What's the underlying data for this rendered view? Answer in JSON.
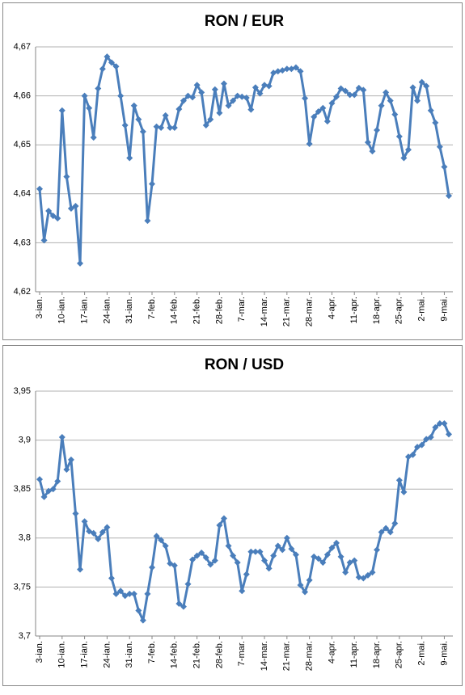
{
  "chart_data": [
    {
      "type": "line",
      "title": "RON / EUR",
      "color": "#4a7ebb",
      "grid": true,
      "categories": [
        "3-ian.",
        null,
        null,
        null,
        null,
        "10-ian.",
        null,
        null,
        null,
        null,
        "17-ian.",
        null,
        null,
        null,
        null,
        "24-ian.",
        null,
        null,
        null,
        null,
        "31-ian.",
        null,
        null,
        null,
        null,
        "7-feb.",
        null,
        null,
        null,
        null,
        "14-feb.",
        null,
        null,
        null,
        null,
        "21-feb.",
        null,
        null,
        null,
        null,
        "28-feb.",
        null,
        null,
        null,
        null,
        "7-mar.",
        null,
        null,
        null,
        null,
        "14-mar.",
        null,
        null,
        null,
        null,
        "21-mar.",
        null,
        null,
        null,
        null,
        "28-mar.",
        null,
        null,
        null,
        null,
        "4-apr.",
        null,
        null,
        null,
        null,
        "11-apr.",
        null,
        null,
        null,
        null,
        "18-apr.",
        null,
        null,
        null,
        null,
        "25-apr.",
        null,
        null,
        null,
        null,
        "2-mai.",
        null,
        null,
        null,
        null,
        "9-mai.",
        null
      ],
      "values": [
        4.641,
        4.6305,
        4.6365,
        4.6355,
        4.635,
        4.657,
        4.6435,
        4.637,
        4.6375,
        4.6258,
        4.66,
        4.6575,
        4.6515,
        4.6615,
        4.6655,
        4.668,
        4.6668,
        4.666,
        4.66,
        4.654,
        4.6473,
        4.658,
        4.6552,
        4.6527,
        4.6345,
        4.642,
        4.6537,
        4.6535,
        4.656,
        4.6535,
        4.6535,
        4.6573,
        4.659,
        4.66,
        4.6597,
        4.6622,
        4.6607,
        4.654,
        4.6552,
        4.6613,
        4.6565,
        4.6625,
        4.658,
        4.659,
        4.66,
        4.6598,
        4.6596,
        4.6572,
        4.6617,
        4.6605,
        4.6622,
        4.662,
        4.6647,
        4.665,
        4.6652,
        4.6655,
        4.6655,
        4.6658,
        4.665,
        4.6595,
        4.6502,
        4.6557,
        4.6568,
        4.6575,
        4.6548,
        4.6585,
        4.6598,
        4.6615,
        4.661,
        4.6602,
        4.6602,
        4.6616,
        4.6612,
        4.6505,
        4.6487,
        4.653,
        4.658,
        4.6607,
        4.659,
        4.6562,
        4.6517,
        4.6473,
        4.649,
        4.6617,
        4.659,
        4.6628,
        4.662,
        4.657,
        4.6545,
        4.6496,
        4.6455,
        4.6396
      ],
      "ylim": [
        4.62,
        4.67
      ],
      "yticks": [
        {
          "value": 4.62,
          "label": "4,62"
        },
        {
          "value": 4.63,
          "label": "4,63"
        },
        {
          "value": 4.64,
          "label": "4,64"
        },
        {
          "value": 4.65,
          "label": "4,65"
        },
        {
          "value": 4.66,
          "label": "4,66"
        },
        {
          "value": 4.67,
          "label": "4,67"
        }
      ]
    },
    {
      "type": "line",
      "title": "RON / USD",
      "color": "#4a7ebb",
      "grid": true,
      "categories": [
        "3-ian.",
        null,
        null,
        null,
        null,
        "10-ian.",
        null,
        null,
        null,
        null,
        "17-ian.",
        null,
        null,
        null,
        null,
        "24-ian.",
        null,
        null,
        null,
        null,
        "31-ian.",
        null,
        null,
        null,
        null,
        "7-feb.",
        null,
        null,
        null,
        null,
        "14-feb.",
        null,
        null,
        null,
        null,
        "21-feb.",
        null,
        null,
        null,
        null,
        "28-feb.",
        null,
        null,
        null,
        null,
        "7-mar.",
        null,
        null,
        null,
        null,
        "14-mar.",
        null,
        null,
        null,
        null,
        "21-mar.",
        null,
        null,
        null,
        null,
        "28-mar.",
        null,
        null,
        null,
        null,
        "4-apr.",
        null,
        null,
        null,
        null,
        "11-apr.",
        null,
        null,
        null,
        null,
        "18-apr.",
        null,
        null,
        null,
        null,
        "25-apr.",
        null,
        null,
        null,
        null,
        "2-mai.",
        null,
        null,
        null,
        null,
        "9-mai.",
        null
      ],
      "values": [
        3.86,
        3.842,
        3.848,
        3.85,
        3.858,
        3.903,
        3.87,
        3.88,
        3.825,
        3.768,
        3.817,
        3.807,
        3.805,
        3.799,
        3.806,
        3.811,
        3.759,
        3.743,
        3.746,
        3.741,
        3.743,
        3.743,
        3.726,
        3.716,
        3.743,
        3.77,
        3.802,
        3.798,
        3.792,
        3.774,
        3.772,
        3.733,
        3.73,
        3.753,
        3.778,
        3.782,
        3.785,
        3.78,
        3.773,
        3.777,
        3.813,
        3.82,
        3.792,
        3.782,
        3.775,
        3.746,
        3.763,
        3.786,
        3.786,
        3.786,
        3.777,
        3.769,
        3.782,
        3.792,
        3.788,
        3.8,
        3.789,
        3.783,
        3.752,
        3.745,
        3.757,
        3.781,
        3.779,
        3.775,
        3.783,
        3.79,
        3.795,
        3.781,
        3.765,
        3.775,
        3.777,
        3.76,
        3.759,
        3.762,
        3.765,
        3.788,
        3.806,
        3.81,
        3.806,
        3.815,
        3.859,
        3.847,
        3.883,
        3.885,
        3.893,
        3.895,
        3.901,
        3.903,
        3.913,
        3.917,
        3.917,
        3.906
      ],
      "ylim": [
        3.7,
        3.95
      ],
      "yticks": [
        {
          "value": 3.7,
          "label": "3,7"
        },
        {
          "value": 3.75,
          "label": "3,75"
        },
        {
          "value": 3.8,
          "label": "3,8"
        },
        {
          "value": 3.85,
          "label": "3,85"
        },
        {
          "value": 3.9,
          "label": "3,9"
        },
        {
          "value": 3.95,
          "label": "3,95"
        }
      ]
    }
  ]
}
